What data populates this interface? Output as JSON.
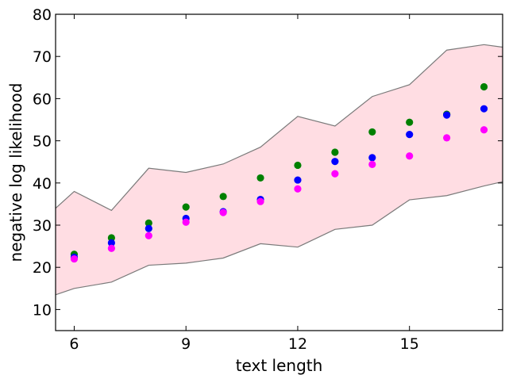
{
  "chart_data": {
    "type": "scatter",
    "xlabel": "text length",
    "ylabel": "negative log likelihood",
    "xlim": [
      5.5,
      17.5
    ],
    "ylim": [
      5,
      80
    ],
    "xticks": [
      6,
      9,
      12,
      15
    ],
    "yticks": [
      10,
      20,
      30,
      40,
      50,
      60,
      70,
      80
    ],
    "grid": false,
    "band": {
      "color": "#ffdde3",
      "edge_color": "#7a7a7a",
      "x": [
        5.5,
        6,
        7,
        8,
        9,
        10,
        11,
        12,
        13,
        14,
        15,
        16,
        17,
        17.5
      ],
      "upper": [
        34,
        38,
        33.5,
        43.5,
        42.5,
        44.5,
        48.5,
        55.8,
        53.5,
        60.5,
        63.3,
        71.5,
        72.8,
        72.2
      ],
      "lower": [
        13.5,
        15,
        16.5,
        20.5,
        21,
        22.2,
        25.6,
        24.8,
        29,
        30,
        36,
        37,
        39.3,
        40.3
      ]
    },
    "series": [
      {
        "color": "#008000",
        "x": [
          6,
          7,
          8,
          9,
          10,
          11,
          12,
          13,
          14,
          15,
          16,
          17
        ],
        "values": [
          23.1,
          27.0,
          30.5,
          34.3,
          36.8,
          41.2,
          44.2,
          47.3,
          52.1,
          54.4,
          56.3,
          62.8
        ]
      },
      {
        "color": "#0000ff",
        "x": [
          6,
          7,
          8,
          9,
          10,
          11,
          12,
          13,
          14,
          15,
          16,
          17
        ],
        "values": [
          22.4,
          25.8,
          29.2,
          31.6,
          33.2,
          36.1,
          40.7,
          45.1,
          46.0,
          51.5,
          56.1,
          57.6
        ]
      },
      {
        "color": "#ff00ff",
        "x": [
          6,
          7,
          8,
          9,
          10,
          11,
          12,
          13,
          14,
          15,
          16,
          17
        ],
        "values": [
          22.0,
          24.5,
          27.5,
          30.7,
          33.0,
          35.6,
          38.6,
          42.2,
          44.4,
          46.4,
          50.7,
          52.6
        ]
      }
    ]
  }
}
